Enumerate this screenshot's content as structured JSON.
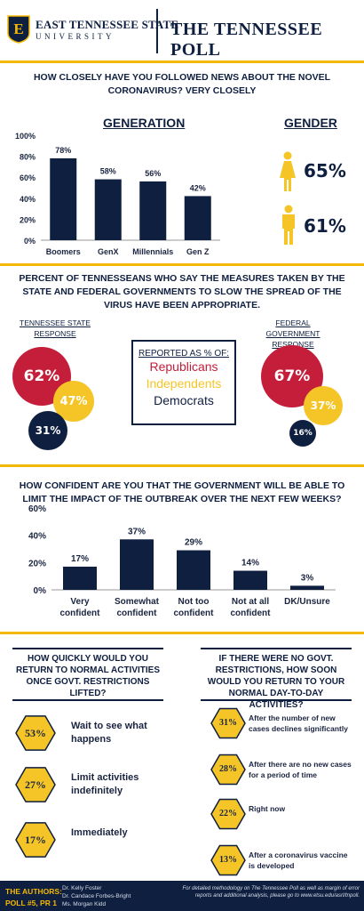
{
  "header": {
    "logo_letter": "E",
    "university_name": "EAST TENNESSEE STATE",
    "university_sub": "UNIVERSITY",
    "poll_title": "THE TENNESSEE POLL"
  },
  "colors": {
    "navy": "#0f1f40",
    "gold": "#f5b800",
    "red": "#c41e3a",
    "yellow": "#f5c527"
  },
  "q1": {
    "title": "How closely have you followed news about the novel coronavirus? Very closely",
    "generation_head": "GENERATION",
    "gender_head": "GENDER",
    "gender": [
      {
        "icon": "female-icon",
        "value": "65%"
      },
      {
        "icon": "male-icon",
        "value": "61%"
      }
    ]
  },
  "q2": {
    "title": "Percent of Tennesseans who say the measures taken by the state and federal governments to slow the spread of the virus have been appropriate.",
    "state_label": "Tennessee State Response",
    "federal_label": "Federal Government Response",
    "legend_title": "REPORTED AS % OF:",
    "legend": [
      "Republicans",
      "Independents",
      "Democrats"
    ],
    "state": {
      "republicans": "62%",
      "independents": "47%",
      "democrats": "31%"
    },
    "federal": {
      "republicans": "67%",
      "independents": "37%",
      "democrats": "16%"
    }
  },
  "q3": {
    "title": "How confident are you that the government will be able to limit the impact of the outbreak over the next few weeks?"
  },
  "q4": {
    "title": "How quickly would you return to normal activities once govt. restrictions lifted?",
    "options": [
      {
        "value": "53%",
        "label": "Wait to see what happens"
      },
      {
        "value": "27%",
        "label": "Limit activities indefinitely"
      },
      {
        "value": "17%",
        "label": "Immediately"
      }
    ]
  },
  "q5": {
    "title": "If there were no govt. restrictions, how soon would you return to your normal day-to-day activities?",
    "options": [
      {
        "value": "31%",
        "label": "After the number of new cases declines significantly"
      },
      {
        "value": "28%",
        "label": "After there are no new cases for a period of time"
      },
      {
        "value": "22%",
        "label": "Right now"
      },
      {
        "value": "13%",
        "label": "After a coronavirus vaccine is developed"
      }
    ]
  },
  "footer": {
    "authors_label": "THE AUTHORS:",
    "poll_id": "POLL #5, PR 1",
    "authors": [
      "Dr. Kelly Foster",
      "Dr. Candace Forbes-Bright",
      "Ms. Morgan Kidd"
    ],
    "note": "For detailed methodology on The Tennessee Poll as well as margin of error reports and additional analysis, please go to www.etsu.edu/asrl/tnpoll."
  },
  "chart_data": [
    {
      "type": "bar",
      "categories": [
        "Boomers",
        "GenX",
        "Millennials",
        "Gen Z"
      ],
      "values": [
        78,
        58,
        56,
        42
      ],
      "data_labels": [
        "78%",
        "58%",
        "56%",
        "42%"
      ],
      "yticks": [
        "0%",
        "20%",
        "40%",
        "60%",
        "80%",
        "100%"
      ],
      "ylim": [
        0,
        100
      ],
      "bar_color": "#0f1f40"
    },
    {
      "type": "bar",
      "categories": [
        "Very confident",
        "Somewhat confident",
        "Not too confident",
        "Not at all confident",
        "DK/Unsure"
      ],
      "values": [
        17,
        37,
        29,
        14,
        3
      ],
      "data_labels": [
        "17%",
        "37%",
        "29%",
        "14%",
        "3%"
      ],
      "yticks": [
        "0%",
        "20%",
        "40%",
        "60%"
      ],
      "ylim": [
        0,
        60
      ],
      "bar_color": "#0f1f40"
    }
  ]
}
